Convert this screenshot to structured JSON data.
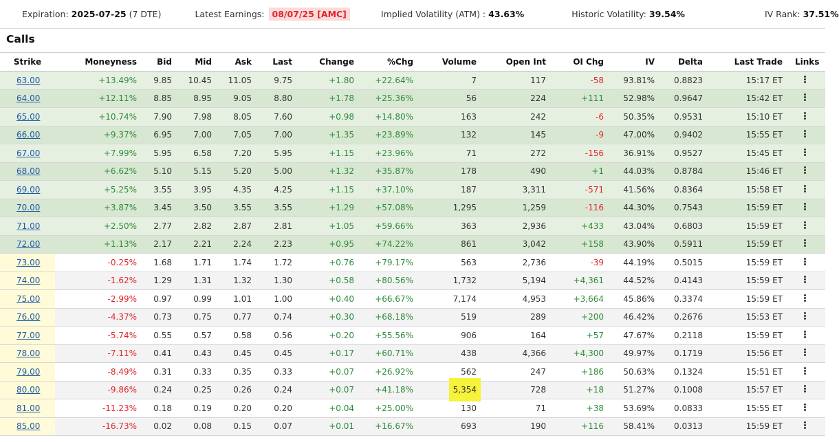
{
  "infobar": {
    "expiration_label": "Expiration:",
    "expiration_value": "2025-07-25",
    "expiration_dte": "(7 DTE)",
    "earnings_label": "Latest Earnings:",
    "earnings_value": "08/07/25 [AMC]",
    "iv_label": "Implied Volatility (ATM) :",
    "iv_value": "43.63%",
    "hv_label": "Historic Volatility:",
    "hv_value": "39.54%",
    "ivrank_label": "IV Rank:",
    "ivrank_value": "37.51%"
  },
  "section_title": "Calls",
  "columns": [
    "Strike",
    "Moneyness",
    "Bid",
    "Mid",
    "Ask",
    "Last",
    "Change",
    "%Chg",
    "Volume",
    "Open Int",
    "OI Chg",
    "IV",
    "Delta",
    "Last Trade",
    "Links"
  ],
  "rows": [
    {
      "strike": "63.00",
      "moneyness": "+13.49%",
      "bid": "9.85",
      "mid": "10.45",
      "ask": "11.05",
      "last": "9.75",
      "change": "+1.80",
      "pchg": "+22.64%",
      "volume": "7",
      "open_int": "117",
      "oi_chg": "-58",
      "iv": "93.81%",
      "delta": "0.8823",
      "last_trade": "15:17 ET"
    },
    {
      "strike": "64.00",
      "moneyness": "+12.11%",
      "bid": "8.85",
      "mid": "8.95",
      "ask": "9.05",
      "last": "8.80",
      "change": "+1.78",
      "pchg": "+25.36%",
      "volume": "56",
      "open_int": "224",
      "oi_chg": "+111",
      "iv": "52.98%",
      "delta": "0.9647",
      "last_trade": "15:42 ET"
    },
    {
      "strike": "65.00",
      "moneyness": "+10.74%",
      "bid": "7.90",
      "mid": "7.98",
      "ask": "8.05",
      "last": "7.60",
      "change": "+0.98",
      "pchg": "+14.80%",
      "volume": "163",
      "open_int": "242",
      "oi_chg": "-6",
      "iv": "50.35%",
      "delta": "0.9531",
      "last_trade": "15:10 ET"
    },
    {
      "strike": "66.00",
      "moneyness": "+9.37%",
      "bid": "6.95",
      "mid": "7.00",
      "ask": "7.05",
      "last": "7.00",
      "change": "+1.35",
      "pchg": "+23.89%",
      "volume": "132",
      "open_int": "145",
      "oi_chg": "-9",
      "iv": "47.00%",
      "delta": "0.9402",
      "last_trade": "15:55 ET"
    },
    {
      "strike": "67.00",
      "moneyness": "+7.99%",
      "bid": "5.95",
      "mid": "6.58",
      "ask": "7.20",
      "last": "5.95",
      "change": "+1.15",
      "pchg": "+23.96%",
      "volume": "71",
      "open_int": "272",
      "oi_chg": "-156",
      "iv": "36.91%",
      "delta": "0.9527",
      "last_trade": "15:45 ET"
    },
    {
      "strike": "68.00",
      "moneyness": "+6.62%",
      "bid": "5.10",
      "mid": "5.15",
      "ask": "5.20",
      "last": "5.00",
      "change": "+1.32",
      "pchg": "+35.87%",
      "volume": "178",
      "open_int": "490",
      "oi_chg": "+1",
      "iv": "44.03%",
      "delta": "0.8784",
      "last_trade": "15:46 ET"
    },
    {
      "strike": "69.00",
      "moneyness": "+5.25%",
      "bid": "3.55",
      "mid": "3.95",
      "ask": "4.35",
      "last": "4.25",
      "change": "+1.15",
      "pchg": "+37.10%",
      "volume": "187",
      "open_int": "3,311",
      "oi_chg": "-571",
      "iv": "41.56%",
      "delta": "0.8364",
      "last_trade": "15:58 ET"
    },
    {
      "strike": "70.00",
      "moneyness": "+3.87%",
      "bid": "3.45",
      "mid": "3.50",
      "ask": "3.55",
      "last": "3.55",
      "change": "+1.29",
      "pchg": "+57.08%",
      "volume": "1,295",
      "open_int": "1,259",
      "oi_chg": "-116",
      "iv": "44.30%",
      "delta": "0.7543",
      "last_trade": "15:59 ET"
    },
    {
      "strike": "71.00",
      "moneyness": "+2.50%",
      "bid": "2.77",
      "mid": "2.82",
      "ask": "2.87",
      "last": "2.81",
      "change": "+1.05",
      "pchg": "+59.66%",
      "volume": "363",
      "open_int": "2,936",
      "oi_chg": "+433",
      "iv": "43.04%",
      "delta": "0.6803",
      "last_trade": "15:59 ET"
    },
    {
      "strike": "72.00",
      "moneyness": "+1.13%",
      "bid": "2.17",
      "mid": "2.21",
      "ask": "2.24",
      "last": "2.23",
      "change": "+0.95",
      "pchg": "+74.22%",
      "volume": "861",
      "open_int": "3,042",
      "oi_chg": "+158",
      "iv": "43.90%",
      "delta": "0.5911",
      "last_trade": "15:59 ET"
    },
    {
      "strike": "73.00",
      "moneyness": "-0.25%",
      "bid": "1.68",
      "mid": "1.71",
      "ask": "1.74",
      "last": "1.72",
      "change": "+0.76",
      "pchg": "+79.17%",
      "volume": "563",
      "open_int": "2,736",
      "oi_chg": "-39",
      "iv": "44.19%",
      "delta": "0.5015",
      "last_trade": "15:59 ET"
    },
    {
      "strike": "74.00",
      "moneyness": "-1.62%",
      "bid": "1.29",
      "mid": "1.31",
      "ask": "1.32",
      "last": "1.30",
      "change": "+0.58",
      "pchg": "+80.56%",
      "volume": "1,732",
      "open_int": "5,194",
      "oi_chg": "+4,361",
      "iv": "44.52%",
      "delta": "0.4143",
      "last_trade": "15:59 ET"
    },
    {
      "strike": "75.00",
      "moneyness": "-2.99%",
      "bid": "0.97",
      "mid": "0.99",
      "ask": "1.01",
      "last": "1.00",
      "change": "+0.40",
      "pchg": "+66.67%",
      "volume": "7,174",
      "open_int": "4,953",
      "oi_chg": "+3,664",
      "iv": "45.86%",
      "delta": "0.3374",
      "last_trade": "15:59 ET"
    },
    {
      "strike": "76.00",
      "moneyness": "-4.37%",
      "bid": "0.73",
      "mid": "0.75",
      "ask": "0.77",
      "last": "0.74",
      "change": "+0.30",
      "pchg": "+68.18%",
      "volume": "519",
      "open_int": "289",
      "oi_chg": "+200",
      "iv": "46.42%",
      "delta": "0.2676",
      "last_trade": "15:53 ET"
    },
    {
      "strike": "77.00",
      "moneyness": "-5.74%",
      "bid": "0.55",
      "mid": "0.57",
      "ask": "0.58",
      "last": "0.56",
      "change": "+0.20",
      "pchg": "+55.56%",
      "volume": "906",
      "open_int": "164",
      "oi_chg": "+57",
      "iv": "47.67%",
      "delta": "0.2118",
      "last_trade": "15:59 ET"
    },
    {
      "strike": "78.00",
      "moneyness": "-7.11%",
      "bid": "0.41",
      "mid": "0.43",
      "ask": "0.45",
      "last": "0.45",
      "change": "+0.17",
      "pchg": "+60.71%",
      "volume": "438",
      "open_int": "4,366",
      "oi_chg": "+4,300",
      "iv": "49.97%",
      "delta": "0.1719",
      "last_trade": "15:56 ET"
    },
    {
      "strike": "79.00",
      "moneyness": "-8.49%",
      "bid": "0.31",
      "mid": "0.33",
      "ask": "0.35",
      "last": "0.33",
      "change": "+0.07",
      "pchg": "+26.92%",
      "volume": "562",
      "open_int": "247",
      "oi_chg": "+186",
      "iv": "50.63%",
      "delta": "0.1324",
      "last_trade": "15:51 ET"
    },
    {
      "strike": "80.00",
      "moneyness": "-9.86%",
      "bid": "0.24",
      "mid": "0.25",
      "ask": "0.26",
      "last": "0.24",
      "change": "+0.07",
      "pchg": "+41.18%",
      "volume": "5,354",
      "open_int": "728",
      "oi_chg": "+18",
      "iv": "51.27%",
      "delta": "0.1008",
      "last_trade": "15:57 ET",
      "volume_highlight": true
    },
    {
      "strike": "81.00",
      "moneyness": "-11.23%",
      "bid": "0.18",
      "mid": "0.19",
      "ask": "0.20",
      "last": "0.20",
      "change": "+0.04",
      "pchg": "+25.00%",
      "volume": "130",
      "open_int": "71",
      "oi_chg": "+38",
      "iv": "53.69%",
      "delta": "0.0833",
      "last_trade": "15:55 ET"
    },
    {
      "strike": "85.00",
      "moneyness": "-16.73%",
      "bid": "0.02",
      "mid": "0.08",
      "ask": "0.15",
      "last": "0.07",
      "change": "+0.01",
      "pchg": "+16.67%",
      "volume": "693",
      "open_int": "190",
      "oi_chg": "+116",
      "iv": "58.41%",
      "delta": "0.0313",
      "last_trade": "15:59 ET"
    }
  ],
  "icons": {
    "row_menu": "kebab-menu-icon"
  },
  "colors": {
    "positive": "#2e8b3a",
    "negative": "#e0262a",
    "link": "#1d5aa6",
    "itm_row": "#e6f0e1",
    "otm_strike_bg": "#fffbd8",
    "volume_highlight": "#f7f23a",
    "earnings_badge_bg": "#fbdada"
  }
}
